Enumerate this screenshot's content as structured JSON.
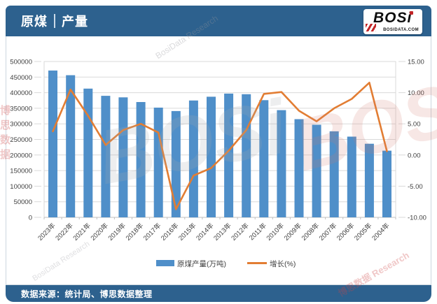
{
  "header": {
    "title_left": "原煤",
    "title_right": "产量",
    "logo": {
      "text": "BOSi",
      "subtext": "BOSIDATA.COM"
    }
  },
  "footer": {
    "source_text": "数据来源：统计局、博思数据整理"
  },
  "watermark": {
    "texts": [
      "博思数据",
      "BosiData Research",
      "BOSi",
      "BOSi",
      "博思数据 Research",
      "BosiData Research"
    ]
  },
  "colors": {
    "header_blue": "#2d618e",
    "bar_blue": "#4f8fc9",
    "line_orange": "#e27d33",
    "gridline": "#d9d9d9",
    "axis_text": "#404040"
  },
  "chart_data": {
    "type": "bar",
    "subtype": "bar-with-line-dual-axis",
    "title": "",
    "categories": [
      "2023年",
      "2022年",
      "2021年",
      "2020年",
      "2019年",
      "2018年",
      "2017年",
      "2016年",
      "2015年",
      "2014年",
      "2013年",
      "2012年",
      "2011年",
      "2010年",
      "2009年",
      "2008年",
      "2007年",
      "2006年",
      "2005年",
      "2004年"
    ],
    "series": [
      {
        "name": "原煤产量(万吨)",
        "type": "bar",
        "axis": "left",
        "color": "#4f8fc9",
        "values": [
          471000,
          456000,
          413000,
          390000,
          385000,
          370000,
          352000,
          341000,
          375000,
          387000,
          397000,
          395000,
          376000,
          344000,
          315000,
          297000,
          276000,
          259000,
          236000,
          214000
        ]
      },
      {
        "name": "增长(%)",
        "type": "line",
        "axis": "right",
        "color": "#e27d33",
        "values": [
          3.8,
          10.5,
          6.3,
          1.6,
          4.0,
          5.0,
          3.6,
          -8.7,
          -3.3,
          -2.1,
          0.7,
          4.0,
          9.8,
          10.1,
          7.1,
          5.4,
          7.5,
          9.0,
          11.6,
          0.6
        ]
      }
    ],
    "left_axis": {
      "min": 0,
      "max": 500000,
      "step": 50000,
      "tick_labels": [
        "0",
        "50000",
        "100000",
        "150000",
        "200000",
        "250000",
        "300000",
        "350000",
        "400000",
        "450000",
        "500000"
      ]
    },
    "right_axis": {
      "min": -10,
      "max": 15,
      "step": 5,
      "tick_labels": [
        "-10.00",
        "-5.00",
        "0.00",
        "5.00",
        "10.00",
        "15.00"
      ]
    },
    "grid": true,
    "legend_position": "bottom",
    "xlabel": "",
    "ylabel": ""
  }
}
